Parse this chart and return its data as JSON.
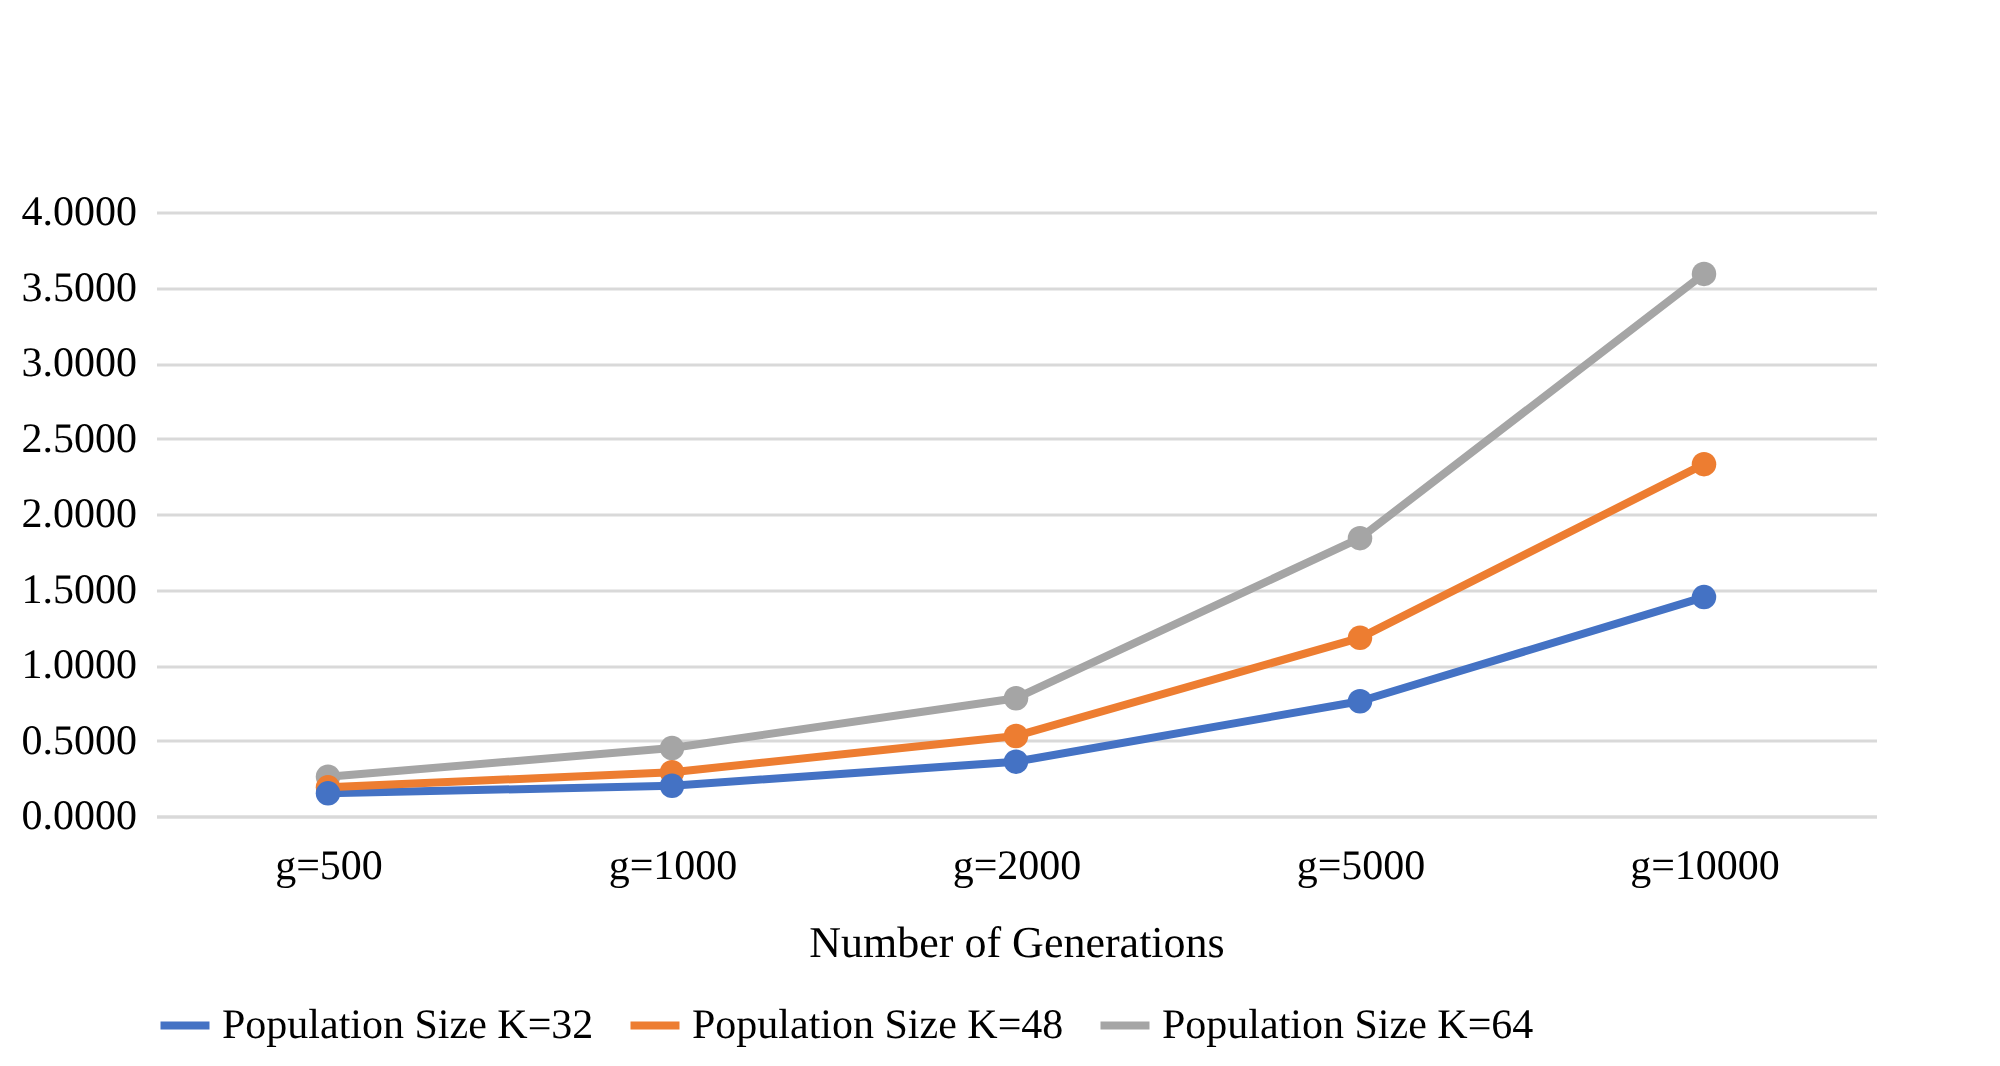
{
  "chart_data": {
    "type": "line",
    "xlabel": "Number of Generations",
    "categories": [
      "g=500",
      "g=1000",
      "g=2000",
      "g=5000",
      "g=10000"
    ],
    "series": [
      {
        "name": "Population Size K=32",
        "color": "#4472c4",
        "values": [
          0.15,
          0.2,
          0.36,
          0.76,
          1.45
        ]
      },
      {
        "name": "Population Size K=48",
        "color": "#ed7d31",
        "values": [
          0.19,
          0.29,
          0.53,
          1.18,
          2.33
        ]
      },
      {
        "name": "Population Size K=64",
        "color": "#a5a5a5",
        "values": [
          0.26,
          0.45,
          0.78,
          1.84,
          3.59
        ]
      }
    ],
    "ylim": [
      0,
      4
    ],
    "yticks": [
      {
        "value": 0,
        "label": "0.0000"
      },
      {
        "value": 0.5,
        "label": "0.5000"
      },
      {
        "value": 1,
        "label": "1.0000"
      },
      {
        "value": 1.5,
        "label": "1.5000"
      },
      {
        "value": 2,
        "label": "2.0000"
      },
      {
        "value": 2.5,
        "label": "2.5000"
      },
      {
        "value": 3,
        "label": "3.0000"
      },
      {
        "value": 3.5,
        "label": "3.5000"
      },
      {
        "value": 4,
        "label": "4.0000"
      }
    ],
    "grid": "y",
    "legend": "bottom",
    "marker": "circle",
    "line_style": "solid"
  }
}
